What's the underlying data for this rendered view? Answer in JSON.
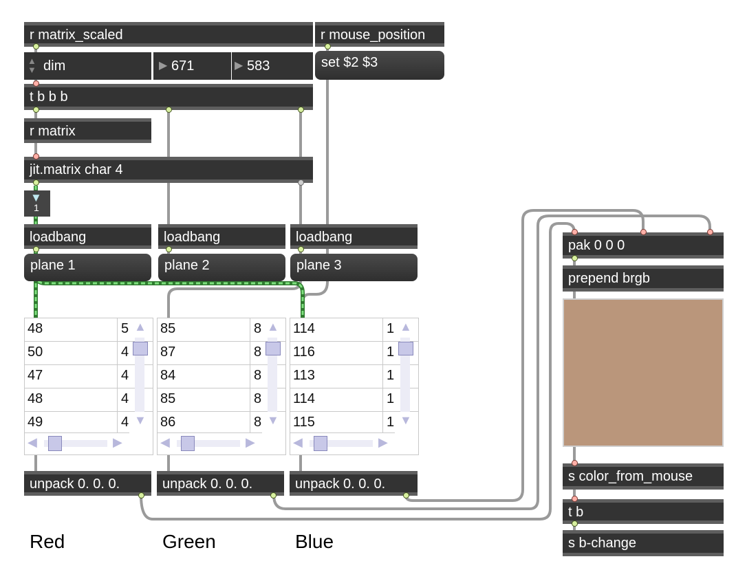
{
  "objects": {
    "r_matrix_scaled": "r matrix_scaled",
    "r_mouse_position": "r mouse_position",
    "set_msg": "set $2 $3",
    "dim_menu": "dim",
    "num1": "671",
    "num2": "583",
    "t_bbb": "t b b b",
    "r_matrix": "r matrix",
    "jit_matrix": "jit.matrix char 4",
    "gate_val": "1",
    "loadbang": "loadbang",
    "plane1": "plane 1",
    "plane2": "plane 2",
    "plane3": "plane 3",
    "unpack": "unpack 0. 0. 0.",
    "pak": "pak 0 0 0",
    "prepend": "prepend brgb",
    "s_color": "s color_from_mouse",
    "tb": "t b",
    "s_bchange": "s b-change"
  },
  "cells": {
    "red": {
      "c1": [
        "48",
        "50",
        "47",
        "48",
        "49"
      ],
      "c2": [
        "5",
        "4",
        "4",
        "4",
        "4"
      ]
    },
    "green": {
      "c1": [
        "85",
        "87",
        "84",
        "85",
        "86"
      ],
      "c2": [
        "8",
        "8",
        "8",
        "8",
        "8"
      ]
    },
    "blue": {
      "c1": [
        "114",
        "116",
        "113",
        "114",
        "115"
      ],
      "c2": [
        "1",
        "1",
        "1",
        "1",
        "1"
      ]
    }
  },
  "labels": {
    "red": "Red",
    "green": "Green",
    "blue": "Blue"
  },
  "colors": {
    "swatch": "#ba967b",
    "patch_cord_signal": "#5fd35f"
  }
}
